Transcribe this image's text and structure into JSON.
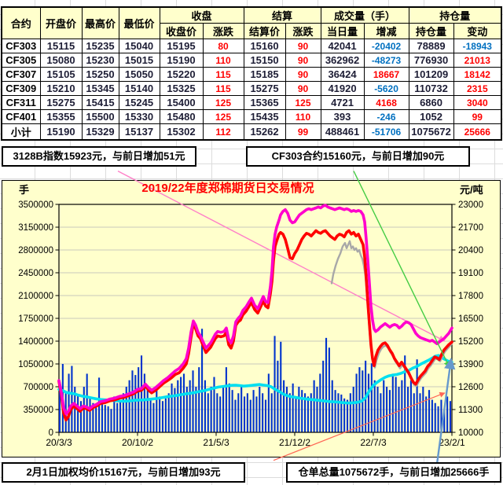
{
  "colors": {
    "positive": "#ff0000",
    "negative": "#0070c0",
    "header_bg": "#ffffcc",
    "chart_bg": "#ffffcc",
    "grid": "#b9b9b9"
  },
  "table": {
    "h1": [
      "合约",
      "开盘价",
      "最高价",
      "最低价",
      "收盘",
      "结算",
      "成交量（手）",
      "持仓量"
    ],
    "h2": [
      "收盘价",
      "涨跌",
      "结算价",
      "涨跌",
      "当日量",
      "增减",
      "持仓量",
      "变动"
    ],
    "rows": [
      [
        "CF303",
        "15115",
        "15235",
        "15040",
        "15195",
        "80",
        "15160",
        "90",
        "42041",
        "-20402",
        "78889",
        "-18943"
      ],
      [
        "CF305",
        "15080",
        "15230",
        "15015",
        "15190",
        "110",
        "15150",
        "90",
        "362962",
        "-48273",
        "776930",
        "21013"
      ],
      [
        "CF307",
        "15105",
        "15250",
        "15050",
        "15220",
        "115",
        "15185",
        "90",
        "36424",
        "18667",
        "101209",
        "18142"
      ],
      [
        "CF309",
        "15210",
        "15345",
        "15140",
        "15325",
        "115",
        "15275",
        "90",
        "41920",
        "-5620",
        "110732",
        "2315"
      ],
      [
        "CF311",
        "15275",
        "15415",
        "15245",
        "15400",
        "125",
        "15365",
        "125",
        "4721",
        "4168",
        "6860",
        "3040"
      ],
      [
        "CF401",
        "15355",
        "15500",
        "15330",
        "15480",
        "125",
        "15435",
        "110",
        "393",
        "-246",
        "1052",
        "99"
      ],
      [
        "小计",
        "15190",
        "15329",
        "15137",
        "15302",
        "112",
        "15262",
        "99",
        "488461",
        "-51706",
        "1075672",
        "25666"
      ]
    ]
  },
  "info_boxes": {
    "top_left": "3128B指数15923元，与前日增加51元",
    "top_right": "CF303合约15160元，与前日增加90元",
    "bottom_left": "2月1日加权均价15167元，与前日增加93元",
    "bottom_right": "仓单总量1075672手，与前日增加25666手"
  },
  "chart_data": {
    "type": "composite",
    "title": "2019/22年度郑棉期货日交易情况",
    "unit_left": "手",
    "unit_right": "元/吨",
    "x_labels": [
      "20/3/3",
      "20/10/2",
      "21/5/3",
      "21/12/2",
      "22/7/3",
      "23/2/1"
    ],
    "left_axis": {
      "min": 0,
      "max": 3500000,
      "step": 350000
    },
    "right_axis": {
      "min": 10000,
      "max": 23000,
      "step": 1300
    },
    "volume_bars": {
      "name": "volume",
      "axis": "left",
      "color": "#0033cc",
      "values": [
        780000,
        1050000,
        620000,
        900000,
        1020000,
        700000,
        560000,
        480000,
        700000,
        900000,
        520000,
        450000,
        380000,
        840000,
        500000,
        420000,
        400000,
        360000,
        550000,
        450000,
        500000,
        600000,
        700000,
        800000,
        950000,
        880000,
        1000000,
        1180000,
        900000,
        650000,
        500000,
        450000,
        700000,
        550000,
        480000,
        520000,
        600000,
        750000,
        680000,
        800000,
        850000,
        900000,
        700000,
        800000,
        950000,
        700000,
        1000000,
        1590000,
        800000,
        600000,
        700000,
        850000,
        600000,
        550000,
        700000,
        1000000,
        750000,
        650000,
        500000,
        600000,
        700000,
        550000,
        600000,
        500000,
        650000,
        550000,
        700000,
        600000,
        500000,
        900000,
        600000,
        1480000,
        1100000,
        1390000,
        800000,
        700000,
        600000,
        750000,
        550000,
        700000,
        650000,
        600000,
        550000,
        600000,
        800000,
        700000,
        900000,
        1100000,
        1450000,
        1300000,
        800000,
        650000,
        600000,
        580000,
        520000,
        500000,
        600000,
        700000,
        900000,
        1000000,
        950000,
        1100000,
        900000,
        1060000,
        800000,
        700000,
        600000,
        800000,
        700000,
        650000,
        900000,
        850000,
        700000,
        800000,
        1180000,
        700000,
        800000,
        600000,
        1120000,
        600000,
        700000,
        550000,
        650000,
        500000,
        450000,
        400000,
        500000,
        350000,
        550000,
        480000
      ]
    },
    "price_x": [
      0,
      0.006,
      0.012,
      0.018,
      0.024,
      0.03,
      0.038,
      0.046,
      0.054,
      0.062,
      0.07,
      0.078,
      0.086,
      0.096,
      0.106,
      0.118,
      0.13,
      0.142,
      0.154,
      0.166,
      0.178,
      0.19,
      0.2,
      0.21,
      0.22,
      0.228,
      0.236,
      0.246,
      0.256,
      0.266,
      0.276,
      0.286,
      0.296,
      0.306,
      0.316,
      0.324,
      0.33,
      0.336,
      0.342,
      0.348,
      0.354,
      0.36,
      0.366,
      0.374,
      0.38,
      0.386,
      0.392,
      0.398,
      0.404,
      0.412,
      0.42,
      0.426,
      0.432,
      0.438,
      0.444,
      0.45,
      0.456,
      0.462,
      0.468,
      0.476,
      0.484,
      0.49,
      0.498,
      0.506,
      0.512,
      0.52,
      0.526,
      0.532,
      0.538,
      0.542,
      0.546,
      0.55,
      0.554,
      0.56,
      0.564,
      0.57,
      0.576,
      0.582,
      0.588,
      0.594,
      0.6,
      0.606,
      0.612,
      0.618,
      0.624,
      0.63,
      0.636,
      0.642,
      0.648,
      0.654,
      0.66,
      0.666,
      0.672,
      0.678,
      0.684,
      0.69,
      0.696,
      0.702,
      0.708,
      0.714,
      0.72,
      0.726,
      0.732,
      0.738,
      0.744,
      0.75,
      0.756,
      0.762,
      0.768,
      0.774,
      0.778,
      0.782,
      0.786,
      0.79,
      0.794,
      0.798,
      0.802,
      0.806,
      0.812,
      0.818,
      0.824,
      0.83,
      0.836,
      0.842,
      0.848,
      0.854,
      0.86,
      0.866,
      0.872,
      0.878,
      0.884,
      0.89,
      0.896,
      0.902,
      0.908,
      0.914,
      0.92,
      0.926,
      0.932,
      0.938,
      0.944,
      0.95,
      0.956,
      0.962,
      0.968,
      0.974,
      0.98,
      0.986,
      0.992,
      1
    ],
    "red_line": {
      "name": "red-price",
      "axis": "right",
      "color": "#ff0000",
      "width": 3.6,
      "v": [
        12900,
        12150,
        11100,
        10700,
        10900,
        11300,
        11500,
        11350,
        11200,
        11400,
        11350,
        11250,
        11400,
        11500,
        11650,
        11700,
        11800,
        11850,
        11950,
        12000,
        12100,
        12200,
        12350,
        12400,
        12650,
        12400,
        12250,
        12400,
        12600,
        12800,
        12950,
        13100,
        13300,
        13400,
        13650,
        13900,
        14500,
        15400,
        16200,
        15900,
        15500,
        15350,
        15000,
        14550,
        14700,
        14850,
        15100,
        15350,
        15500,
        15450,
        15500,
        15700,
        15000,
        14800,
        15200,
        16100,
        16300,
        16400,
        16700,
        16900,
        17200,
        17400,
        17000,
        16800,
        17100,
        17500,
        17200,
        17100,
        17900,
        18600,
        19800,
        20600,
        20900,
        21300,
        21400,
        21300,
        21000,
        20500,
        19950,
        19900,
        20200,
        20400,
        20700,
        21000,
        21200,
        21350,
        21300,
        21200,
        21350,
        21500,
        21400,
        21350,
        21450,
        21500,
        21350,
        21200,
        21100,
        21000,
        21200,
        21300,
        21250,
        21150,
        21400,
        21500,
        21300,
        21400,
        21200,
        21300,
        21000,
        20700,
        20000,
        18800,
        17400,
        16200,
        15000,
        14200,
        13800,
        14300,
        14700,
        14900,
        15050,
        15100,
        14950,
        14700,
        14500,
        14200,
        14000,
        13800,
        14000,
        13800,
        13600,
        13400,
        13100,
        12850,
        12750,
        13000,
        13200,
        13350,
        13500,
        13750,
        13900,
        14100,
        14300,
        14250,
        14150,
        14450,
        14700,
        14850,
        15000,
        15150
      ]
    },
    "magenta_line": {
      "name": "magenta-price",
      "axis": "right",
      "color": "#ff00cc",
      "width": 3.6,
      "v": [
        12950,
        12300,
        11400,
        11050,
        11200,
        11500,
        11650,
        11500,
        11350,
        11500,
        11450,
        11350,
        11500,
        11600,
        11750,
        11800,
        11900,
        11950,
        12050,
        12100,
        12200,
        12300,
        12450,
        12500,
        12750,
        12550,
        12400,
        12550,
        12750,
        12950,
        13100,
        13300,
        13500,
        13650,
        13900,
        14200,
        14800,
        15700,
        16350,
        16100,
        15700,
        15500,
        15200,
        14800,
        14950,
        15100,
        15350,
        15600,
        15750,
        15700,
        15750,
        15950,
        15300,
        15100,
        15500,
        16300,
        16500,
        16650,
        16950,
        17150,
        17450,
        17650,
        17250,
        17050,
        17350,
        17750,
        17450,
        17400,
        18300,
        19200,
        20600,
        21300,
        21700,
        22100,
        22400,
        22600,
        22700,
        22500,
        22100,
        21950,
        22000,
        22200,
        22400,
        22500,
        22600,
        22700,
        22750,
        22700,
        22750,
        22800,
        22850,
        22800,
        22900,
        22950,
        22850,
        22800,
        22750,
        22700,
        22750,
        22800,
        22750,
        22700,
        22750,
        22700,
        22600,
        22650,
        22600,
        22650,
        22600,
        22400,
        22000,
        21000,
        19800,
        18500,
        17200,
        16400,
        15900,
        15750,
        15850,
        16000,
        16100,
        16200,
        16100,
        16000,
        16100,
        16150,
        16100,
        15950,
        16050,
        16200,
        16300,
        16250,
        16150,
        15900,
        15650,
        15500,
        15400,
        15350,
        15300,
        15250,
        15200,
        15250,
        15150,
        15050,
        15150,
        15250,
        15350,
        15500,
        15650,
        15950
      ]
    },
    "gray_line": {
      "name": "gray-price",
      "axis": "right",
      "color": "#a8a8a8",
      "width": 2.4,
      "x": [
        0.694,
        0.698,
        0.704,
        0.71,
        0.716,
        0.722,
        0.728,
        0.732,
        0.736,
        0.74,
        0.744,
        0.748,
        0.752,
        0.756,
        0.76,
        0.764,
        0.768,
        0.772,
        0.776,
        0.78,
        0.784,
        0.788,
        0.792,
        0.796,
        0.8,
        0.804,
        0.808,
        0.814,
        0.82,
        0.826,
        0.832,
        0.838,
        0.844,
        0.85,
        0.856,
        0.862,
        0.868,
        0.874,
        0.88,
        0.886,
        0.892,
        0.898,
        0.904,
        0.91,
        0.916,
        0.922,
        0.928,
        0.934,
        0.94,
        0.946,
        0.952,
        0.958,
        0.964,
        0.97,
        0.976,
        0.982,
        0.988,
        0.994,
        1
      ],
      "v": [
        18500,
        19000,
        19500,
        19900,
        20200,
        20600,
        20800,
        20500,
        20700,
        20900,
        20500,
        20600,
        20400,
        20500,
        20300,
        20400,
        20100,
        19900,
        19500,
        18900,
        17800,
        16500,
        15300,
        14400,
        13900,
        13700,
        14100,
        14500,
        14750,
        14900,
        14950,
        14800,
        14550,
        14350,
        14050,
        13850,
        13650,
        13850,
        13650,
        13450,
        13250,
        12950,
        12700,
        12650,
        12900,
        13100,
        13250,
        13400,
        13650,
        13800,
        14000,
        14200,
        14150,
        14050,
        14350,
        14600,
        14750,
        14900,
        15050
      ]
    },
    "cyan_line": {
      "name": "cyan-openinterest",
      "axis": "left",
      "color": "#00dff0",
      "width": 3.6,
      "x": [
        0,
        0.01,
        0.02,
        0.03,
        0.04,
        0.05,
        0.06,
        0.07,
        0.082,
        0.094,
        0.106,
        0.118,
        0.13,
        0.142,
        0.154,
        0.166,
        0.178,
        0.19,
        0.202,
        0.214,
        0.226,
        0.238,
        0.25,
        0.262,
        0.274,
        0.286,
        0.298,
        0.31,
        0.322,
        0.334,
        0.346,
        0.358,
        0.37,
        0.382,
        0.394,
        0.406,
        0.418,
        0.43,
        0.44,
        0.45,
        0.46,
        0.47,
        0.48,
        0.49,
        0.5,
        0.51,
        0.52,
        0.53,
        0.54,
        0.55,
        0.56,
        0.57,
        0.58,
        0.59,
        0.6,
        0.61,
        0.62,
        0.63,
        0.64,
        0.65,
        0.66,
        0.67,
        0.68,
        0.69,
        0.7,
        0.71,
        0.72,
        0.73,
        0.74,
        0.75,
        0.76,
        0.77,
        0.78,
        0.79,
        0.8,
        0.81,
        0.82,
        0.83,
        0.84,
        0.85,
        0.86,
        0.87,
        0.88,
        0.89,
        0.9,
        0.91,
        0.92,
        0.93,
        0.94,
        0.95,
        0.958,
        0.966,
        0.974,
        0.982,
        0.99,
        1
      ],
      "v": [
        660000,
        640000,
        610000,
        600000,
        590000,
        570000,
        555000,
        545000,
        530000,
        515000,
        505000,
        498000,
        490000,
        487000,
        480000,
        478000,
        482000,
        490000,
        495000,
        497000,
        505000,
        512000,
        520000,
        532000,
        545000,
        555000,
        565000,
        578000,
        590000,
        600000,
        612000,
        628000,
        640000,
        660000,
        680000,
        695000,
        705000,
        715000,
        722000,
        724000,
        718000,
        710000,
        715000,
        720000,
        728000,
        735000,
        725000,
        718000,
        700000,
        660000,
        630000,
        590000,
        565000,
        548000,
        540000,
        528000,
        520000,
        510000,
        505000,
        498000,
        492000,
        485000,
        478000,
        472000,
        468000,
        465000,
        458000,
        452000,
        450000,
        455000,
        462000,
        478000,
        530000,
        640000,
        720000,
        770000,
        810000,
        845000,
        868000,
        880000,
        888000,
        905000,
        930000,
        950000,
        985000,
        1010000,
        1045000,
        1075000,
        1105000,
        1140000,
        1170000,
        1180000,
        1150000,
        1120000,
        1095000,
        1075000
      ]
    },
    "annotations": [
      {
        "name": "trendline-pink",
        "color": "#ff80c8",
        "width": 1.4,
        "x1": 0.15,
        "v1": 24900,
        "x2": 0.982,
        "v2": 15200
      },
      {
        "name": "trendline-green",
        "color": "#44cc44",
        "width": 1.4,
        "x1": 0.75,
        "v1": 24900,
        "x2": 0.994,
        "v2": 13700
      },
      {
        "name": "trendline-red",
        "color": "#ff6655",
        "width": 1.2,
        "x1": 0.546,
        "v1": 8400,
        "x2": 0.982,
        "v2": 12250
      },
      {
        "name": "trendline-blue",
        "color": "#6699cc",
        "width": 2.4,
        "x1": 0.962,
        "v1": 8200,
        "x2": 0.998,
        "v2": 14200
      }
    ]
  }
}
